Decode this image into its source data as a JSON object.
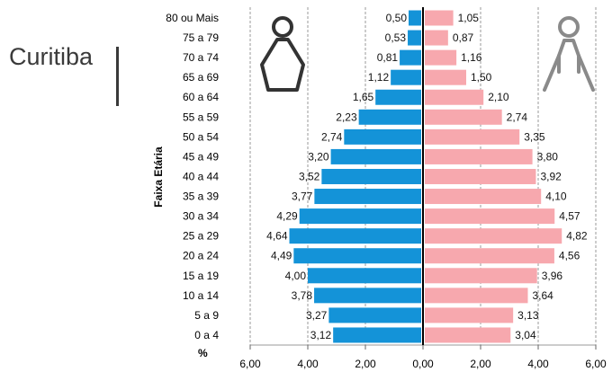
{
  "chart_data": {
    "type": "bar",
    "orientation": "horizontal",
    "title": "Curitiba",
    "ylabel": "Faixa Etária",
    "xlabel": "%",
    "categories": [
      "80 ou Mais",
      "75 a 79",
      "70 a 74",
      "65 a 69",
      "60 a 64",
      "55 a 59",
      "50 a 54",
      "45 a 49",
      "40 a 44",
      "35 a 39",
      "30 a 34",
      "25 a 29",
      "20 a 24",
      "15 a 19",
      "10 a 14",
      "5 a 9",
      "0 a 4"
    ],
    "series": [
      {
        "values": [
          0.5,
          0.53,
          0.81,
          1.12,
          1.65,
          2.23,
          2.74,
          3.2,
          3.52,
          3.77,
          4.29,
          4.64,
          4.49,
          4.0,
          3.78,
          3.27,
          3.12
        ],
        "labels": [
          "0,50",
          "0,53",
          "0,81",
          "1,12",
          "1,65",
          "2,23",
          "2,74",
          "3,20",
          "3,52",
          "3,77",
          "4,29",
          "4,64",
          "4,49",
          "4,00",
          "3,78",
          "3,27",
          "3,12"
        ],
        "color": "#1493d8",
        "side": "left"
      },
      {
        "values": [
          1.05,
          0.87,
          1.16,
          1.5,
          2.1,
          2.74,
          3.35,
          3.8,
          3.92,
          4.1,
          4.57,
          4.82,
          4.56,
          3.96,
          3.64,
          3.13,
          3.04
        ],
        "labels": [
          "1,05",
          "0,87",
          "1,16",
          "1,50",
          "2,10",
          "2,74",
          "3,35",
          "3,80",
          "3,92",
          "4,10",
          "4,57",
          "4,82",
          "4,56",
          "3,96",
          "3,64",
          "3,13",
          "3,04"
        ],
        "color": "#f7a8ae",
        "side": "right"
      }
    ],
    "xlim": [
      -6,
      6
    ],
    "xticks": [
      -6,
      -4,
      -2,
      0,
      2,
      4,
      6
    ],
    "xtick_labels": [
      "6,00",
      "4,00",
      "2,00",
      "0,00",
      "2,00",
      "4,00",
      "6,00"
    ],
    "grid": true,
    "icons": [
      "male-figure-icon",
      "female-figure-icon"
    ],
    "icon_colors": {
      "male": "#333333",
      "female": "#8a8a8a"
    }
  }
}
